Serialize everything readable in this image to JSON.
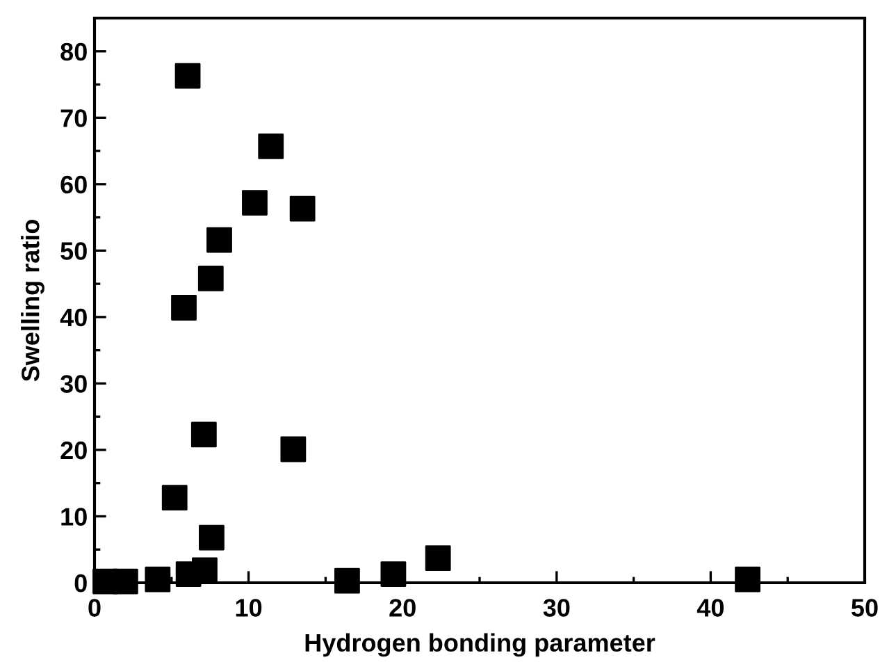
{
  "chart_data": {
    "type": "scatter",
    "xlabel": "Hydrogen bonding parameter",
    "ylabel": "Swelling ratio",
    "x": [
      6.05,
      11.45,
      10.4,
      13.5,
      8.1,
      7.55,
      5.8,
      7.1,
      12.9,
      5.2,
      7.6,
      7.15,
      6.1,
      4.1,
      0.7,
      2.0,
      16.4,
      19.4,
      22.3,
      42.4
    ],
    "values": [
      76.3,
      65.7,
      57.2,
      56.3,
      51.6,
      45.8,
      41.4,
      22.3,
      20.1,
      12.8,
      6.8,
      1.9,
      1.3,
      0.5,
      0.2,
      0.2,
      0.3,
      1.3,
      3.7,
      0.5
    ],
    "color": "#000000",
    "marker": "square",
    "grid": false,
    "xlim": [
      0,
      50
    ],
    "ylim": [
      0,
      85
    ],
    "xticks": [
      0,
      {
        "value": 5,
        "label": null
      },
      10,
      {
        "value": 15,
        "label": null
      },
      20,
      {
        "value": 25,
        "label": null
      },
      30,
      {
        "value": 35,
        "label": null
      },
      40,
      {
        "value": 45,
        "label": null
      },
      50
    ],
    "yticks": [
      0,
      {
        "value": 5,
        "label": null
      },
      10,
      {
        "value": 15,
        "label": null
      },
      20,
      {
        "value": 25,
        "label": null
      },
      30,
      {
        "value": 35,
        "label": null
      },
      40,
      {
        "value": 45,
        "label": null
      },
      50,
      {
        "value": 55,
        "label": null
      },
      60,
      {
        "value": 65,
        "label": null
      },
      70,
      {
        "value": 75,
        "label": null
      },
      80
    ]
  }
}
